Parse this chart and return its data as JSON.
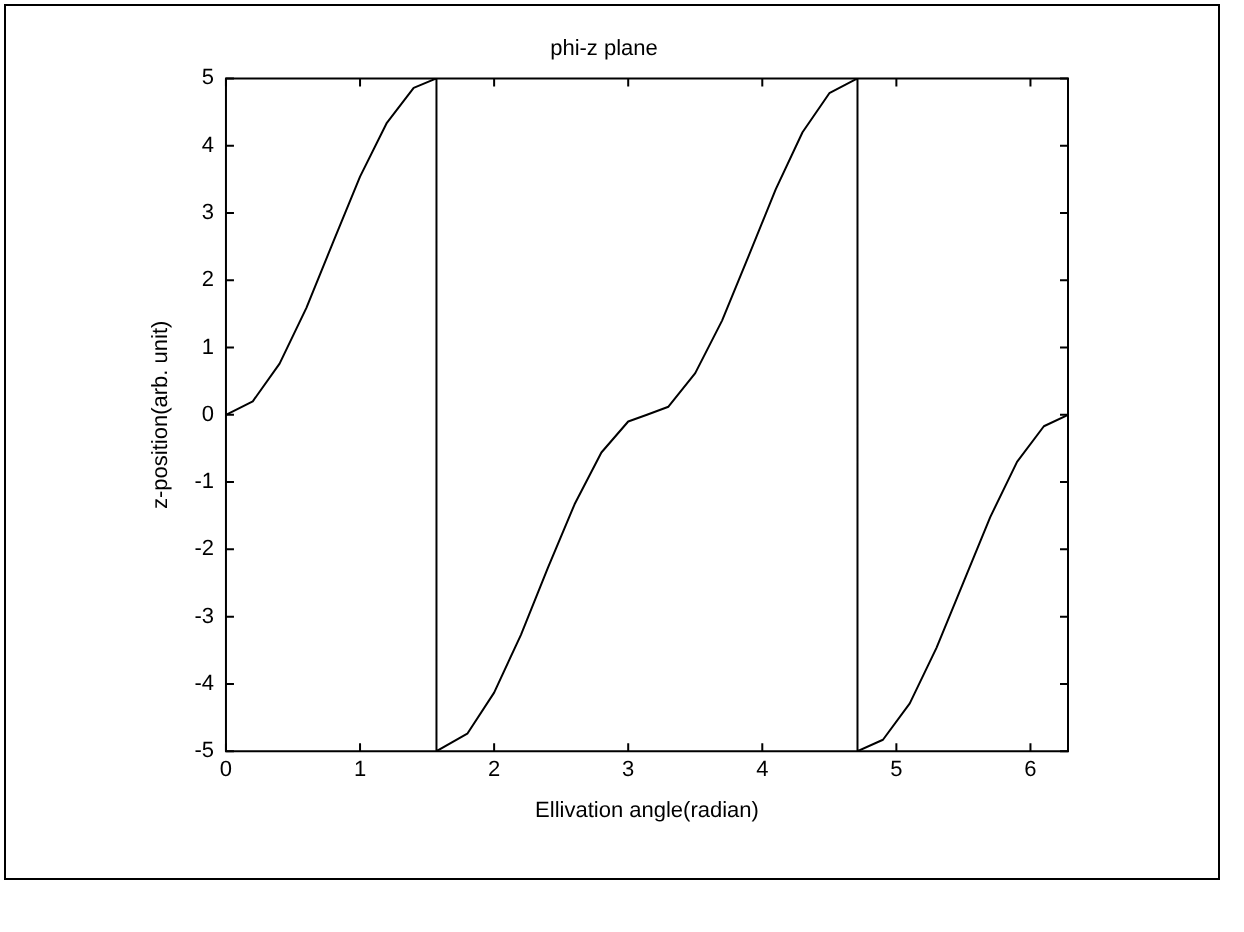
{
  "chart_data": {
    "type": "line",
    "title": "phi-z plane",
    "xlabel": "Ellivation angle(radian)",
    "ylabel": "z-position(arb. unit)",
    "x": [
      0,
      0.2,
      0.4,
      0.6,
      0.8,
      1.0,
      1.2,
      1.4,
      1.57,
      1.57,
      1.8,
      2.0,
      2.2,
      2.4,
      2.6,
      2.8,
      3.0,
      3.14,
      3.3,
      3.5,
      3.7,
      3.9,
      4.1,
      4.3,
      4.5,
      4.71,
      4.71,
      4.9,
      5.1,
      5.3,
      5.5,
      5.7,
      5.9,
      6.1,
      6.28
    ],
    "series": [
      {
        "color": "#000000",
        "values": [
          0,
          0.2,
          0.76,
          1.59,
          2.57,
          3.54,
          4.34,
          4.86,
          5,
          -5,
          -4.74,
          -4.13,
          -3.27,
          -2.28,
          -1.33,
          -0.56,
          -0.1,
          0,
          0.12,
          0.62,
          1.4,
          2.37,
          3.35,
          4.2,
          4.78,
          5,
          -5,
          -4.83,
          -4.29,
          -3.46,
          -2.49,
          -1.52,
          -0.7,
          -0.17,
          0
        ]
      }
    ],
    "xlim": [
      0,
      6.28
    ],
    "ylim": [
      -5,
      5
    ],
    "xticks": [
      0,
      1,
      2,
      3,
      4,
      5,
      6
    ],
    "yticks": [
      -5,
      -4,
      -3,
      -2,
      -1,
      0,
      1,
      2,
      3,
      4,
      5
    ],
    "grid": false,
    "legend": false,
    "marker": "none",
    "line_style": "solid"
  }
}
